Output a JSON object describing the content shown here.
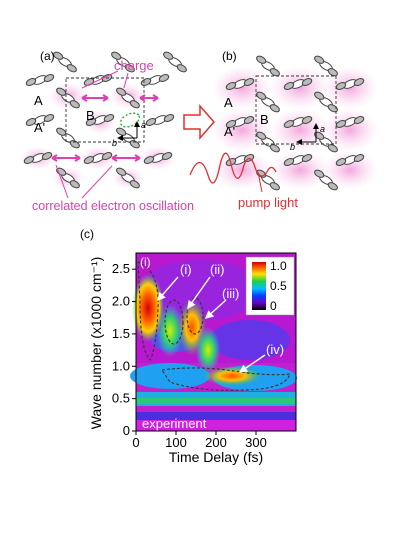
{
  "panel_a": {
    "label": "(a)",
    "charge_label": "charge",
    "site_A": "A",
    "site_A_prime": "A'",
    "site_B": "B",
    "axis_a": "a",
    "axis_b": "b",
    "oscillation_label": "correlated electron oscillation"
  },
  "panel_b": {
    "label": "(b)",
    "site_A": "A",
    "site_A_prime": "A'",
    "site_B": "B",
    "axis_a": "a",
    "axis_b": "b",
    "pump_label": "pump light"
  },
  "panel_c": {
    "label": "(c)",
    "corner_label": "(i)",
    "annotations": [
      "(i)",
      "(ii)",
      "(iii)",
      "(iv)"
    ],
    "experiment_label": "experiment",
    "colorbar_ticks": [
      "1.0",
      "0.5",
      "0"
    ]
  },
  "colors": {
    "charge_magenta": "#e040b0",
    "pump_red": "#e03030"
  },
  "chart_data": {
    "type": "heatmap",
    "xlabel": "Time Delay (fs)",
    "ylabel": "Wave number (x1000 cm⁻¹)",
    "x_ticks": [
      "0",
      "100",
      "200",
      "300"
    ],
    "y_ticks": [
      "0",
      "0.5",
      "1.0",
      "1.5",
      "2.0",
      "2.5"
    ],
    "xlim": [
      0,
      400
    ],
    "ylim": [
      0,
      2.75
    ],
    "colorbar": {
      "min": 0,
      "max": 1.0,
      "ticks": [
        0,
        0.5,
        1.0
      ]
    },
    "features": [
      {
        "name": "(i)",
        "time_fs": 30,
        "wavenumber": 1.9,
        "intensity": 1.0
      },
      {
        "name": "(i)",
        "time_fs": 85,
        "wavenumber": 1.55,
        "intensity": 0.6
      },
      {
        "name": "(ii)",
        "time_fs": 140,
        "wavenumber": 1.6,
        "intensity": 0.7
      },
      {
        "name": "(iii)",
        "time_fs": 180,
        "wavenumber": 1.25,
        "intensity": 0.4
      },
      {
        "name": "(iv)",
        "time_fs": 240,
        "wavenumber": 0.85,
        "intensity": 0.65
      }
    ]
  }
}
